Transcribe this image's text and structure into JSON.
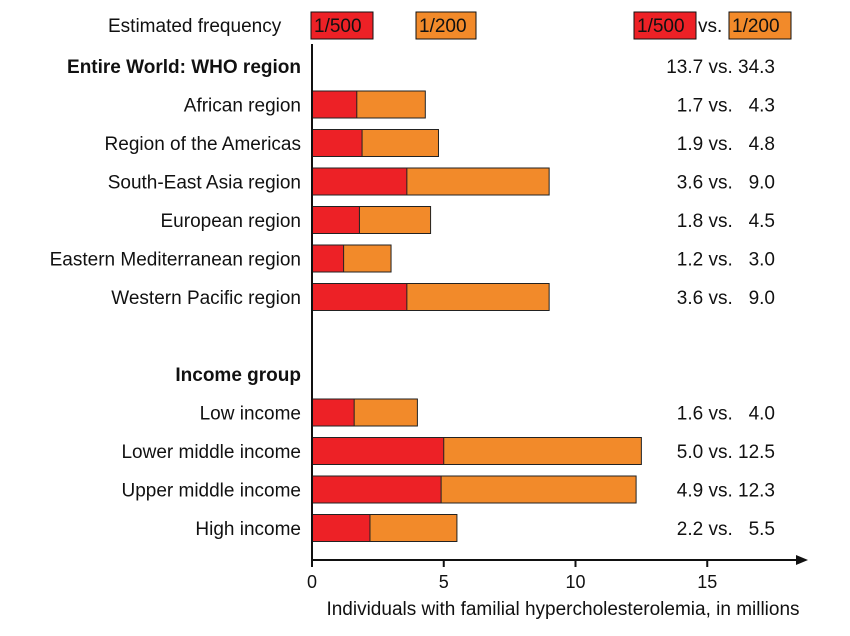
{
  "colors": {
    "low": "#ed2126",
    "high": "#f28a2a",
    "axis": "#111111"
  },
  "legend": {
    "title": "Estimated frequency",
    "low_label": "1/500",
    "high_label": "1/200",
    "vs_low": "1/500",
    "vs_word": "vs.",
    "vs_high": "1/200"
  },
  "chart_data": {
    "type": "bar",
    "orientation": "horizontal",
    "stacked": true,
    "xlabel": "Individuals with familial hypercholesterolemia, in millions",
    "xlim": [
      0,
      18.5
    ],
    "xticks": [
      0,
      5,
      10,
      15
    ],
    "grid": false,
    "sections": [
      {
        "header": "Entire World: WHO region",
        "header_values": "13.7 vs. 34.3",
        "rows": [
          {
            "label": "African region",
            "low": 1.7,
            "high": 4.3,
            "value_text": "1.7 vs.   4.3"
          },
          {
            "label": "Region of the Americas",
            "low": 1.9,
            "high": 4.8,
            "value_text": "1.9 vs.   4.8"
          },
          {
            "label": "South-East Asia region",
            "low": 3.6,
            "high": 9.0,
            "value_text": "3.6 vs.   9.0"
          },
          {
            "label": "European region",
            "low": 1.8,
            "high": 4.5,
            "value_text": "1.8 vs.   4.5"
          },
          {
            "label": "Eastern Mediterranean region",
            "low": 1.2,
            "high": 3.0,
            "value_text": "1.2 vs.   3.0"
          },
          {
            "label": "Western Pacific region",
            "low": 3.6,
            "high": 9.0,
            "value_text": "3.6 vs.   9.0"
          }
        ]
      },
      {
        "header": "Income group",
        "header_values": "",
        "rows": [
          {
            "label": "Low income",
            "low": 1.6,
            "high": 4.0,
            "value_text": "1.6 vs.   4.0"
          },
          {
            "label": "Lower middle income",
            "low": 5.0,
            "high": 12.5,
            "value_text": "5.0 vs. 12.5"
          },
          {
            "label": "Upper middle income",
            "low": 4.9,
            "high": 12.3,
            "value_text": "4.9 vs. 12.3"
          },
          {
            "label": "High income",
            "low": 2.2,
            "high": 5.5,
            "value_text": "2.2 vs.   5.5"
          }
        ]
      }
    ]
  }
}
